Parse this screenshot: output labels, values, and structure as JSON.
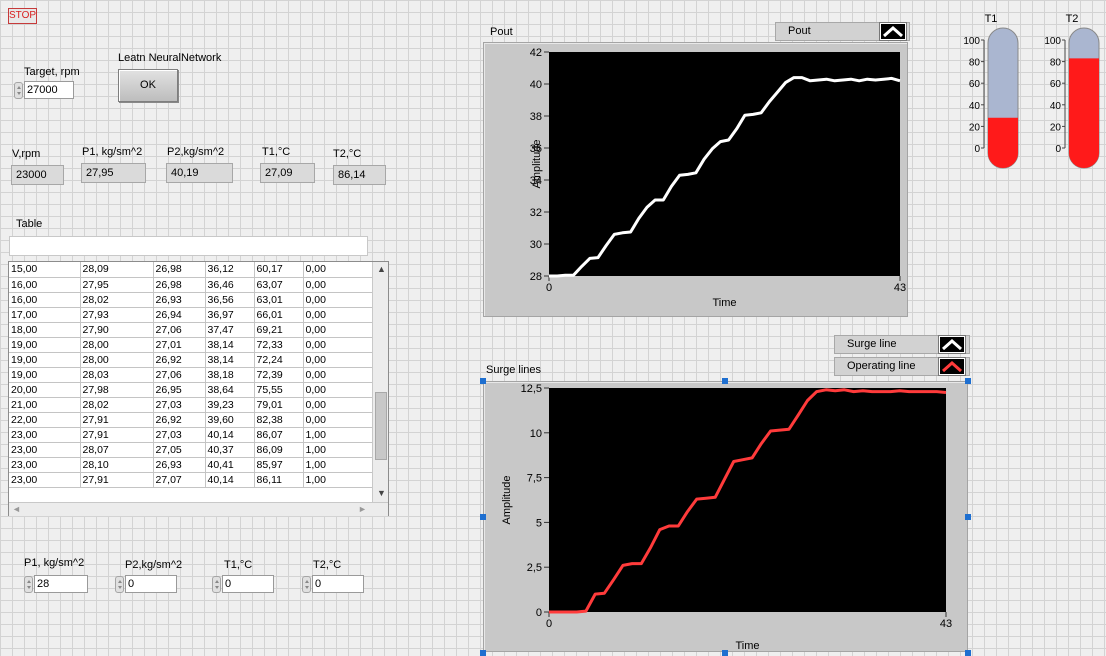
{
  "stop_label": "STOP",
  "learn": {
    "title": "Leatn NeuralNetwork",
    "button": "OK"
  },
  "target": {
    "label": "Target, rpm",
    "value": "27000"
  },
  "indicators": [
    {
      "label": "V,rpm",
      "value": "23000"
    },
    {
      "label": "P1, kg/sm^2",
      "value": "27,95"
    },
    {
      "label": "P2,kg/sm^2",
      "value": "40,19"
    },
    {
      "label": "T1,°C",
      "value": "27,09"
    },
    {
      "label": "T2,°C",
      "value": "86,14"
    }
  ],
  "table": {
    "label": "Table",
    "rows": [
      [
        "15,00",
        "28,09",
        "26,98",
        "36,12",
        "60,17",
        "0,00"
      ],
      [
        "16,00",
        "27,95",
        "26,98",
        "36,46",
        "63,07",
        "0,00"
      ],
      [
        "16,00",
        "28,02",
        "26,93",
        "36,56",
        "63,01",
        "0,00"
      ],
      [
        "17,00",
        "27,93",
        "26,94",
        "36,97",
        "66,01",
        "0,00"
      ],
      [
        "18,00",
        "27,90",
        "27,06",
        "37,47",
        "69,21",
        "0,00"
      ],
      [
        "19,00",
        "28,00",
        "27,01",
        "38,14",
        "72,33",
        "0,00"
      ],
      [
        "19,00",
        "28,00",
        "26,92",
        "38,14",
        "72,24",
        "0,00"
      ],
      [
        "19,00",
        "28,03",
        "27,06",
        "38,18",
        "72,39",
        "0,00"
      ],
      [
        "20,00",
        "27,98",
        "26,95",
        "38,64",
        "75,55",
        "0,00"
      ],
      [
        "21,00",
        "28,02",
        "27,03",
        "39,23",
        "79,01",
        "0,00"
      ],
      [
        "22,00",
        "27,91",
        "26,92",
        "39,60",
        "82,38",
        "0,00"
      ],
      [
        "23,00",
        "27,91",
        "27,03",
        "40,14",
        "86,07",
        "1,00"
      ],
      [
        "23,00",
        "28,07",
        "27,05",
        "40,37",
        "86,09",
        "1,00"
      ],
      [
        "23,00",
        "28,10",
        "26,93",
        "40,41",
        "85,97",
        "1,00"
      ],
      [
        "23,00",
        "27,91",
        "27,07",
        "40,14",
        "86,11",
        "1,00"
      ]
    ]
  },
  "inputs": [
    {
      "label": "P1, kg/sm^2",
      "value": "28"
    },
    {
      "label": "P2,kg/sm^2",
      "value": "0"
    },
    {
      "label": "T1,°C",
      "value": "0"
    },
    {
      "label": "T2,°C",
      "value": "0"
    }
  ],
  "colors": {
    "pout_line": "#ffffff",
    "operating_line": "#ff3b3b",
    "plot_bg": "#000000",
    "tank_red": "#ff1a1a",
    "tank_empty": "#aab6d0"
  },
  "thermometers": [
    {
      "name": "T1",
      "ticks": [
        "100",
        "80",
        "60",
        "40",
        "20",
        "0"
      ],
      "min": 0,
      "max": 100,
      "level": 28
    },
    {
      "name": "T2",
      "ticks": [
        "100",
        "80",
        "60",
        "40",
        "20",
        "0"
      ],
      "min": 0,
      "max": 100,
      "level": 83
    }
  ],
  "chart_data": [
    {
      "type": "line",
      "title": "Pout",
      "legend": [
        "Pout"
      ],
      "xlabel": "Time",
      "ylabel": "Amplitude",
      "xlim": [
        0,
        43
      ],
      "ylim": [
        28,
        42
      ],
      "x_ticks": [
        "0",
        "43"
      ],
      "y_ticks": [
        "28",
        "30",
        "32",
        "34",
        "36",
        "38",
        "40",
        "42"
      ],
      "series": [
        {
          "name": "Pout",
          "color": "#ffffff",
          "x": [
            0,
            1,
            2,
            3,
            4,
            5,
            6,
            7,
            8,
            9,
            10,
            11,
            12,
            13,
            14,
            15,
            16,
            17,
            18,
            19,
            20,
            21,
            22,
            23,
            24,
            25,
            26,
            27,
            28,
            29,
            30,
            31,
            32,
            33,
            34,
            35,
            36,
            37,
            38,
            39,
            40,
            41,
            42,
            43
          ],
          "y": [
            28.0,
            28.0,
            28.05,
            28.05,
            28.6,
            29.1,
            29.15,
            29.9,
            30.6,
            30.7,
            30.75,
            31.6,
            32.3,
            32.75,
            32.75,
            33.6,
            34.3,
            34.35,
            34.45,
            35.3,
            35.95,
            36.4,
            36.5,
            37.2,
            38.05,
            38.1,
            38.2,
            38.9,
            39.5,
            40.1,
            40.4,
            40.4,
            40.2,
            40.25,
            40.3,
            40.2,
            40.25,
            40.3,
            40.2,
            40.3,
            40.25,
            40.3,
            40.35,
            40.2
          ]
        }
      ]
    },
    {
      "type": "line",
      "title": "Surge lines",
      "legend": [
        "Surge line",
        "Operating line"
      ],
      "xlabel": "Time",
      "ylabel": "Amplitude",
      "xlim": [
        0,
        43
      ],
      "ylim": [
        0,
        12.5
      ],
      "x_ticks": [
        "0",
        "43"
      ],
      "y_ticks": [
        "0",
        "2,5",
        "5",
        "7,5",
        "10",
        "12,5"
      ],
      "series": [
        {
          "name": "Operating line",
          "color": "#ff3b3b",
          "x": [
            0,
            1,
            2,
            3,
            4,
            5,
            6,
            7,
            8,
            9,
            10,
            11,
            12,
            13,
            14,
            15,
            16,
            17,
            18,
            19,
            20,
            21,
            22,
            23,
            24,
            25,
            26,
            27,
            28,
            29,
            30,
            31,
            32,
            33,
            34,
            35,
            36,
            37,
            38,
            39,
            40,
            41,
            42,
            43
          ],
          "y": [
            0.0,
            0.0,
            0.0,
            0.0,
            0.05,
            1.0,
            1.05,
            1.8,
            2.6,
            2.7,
            2.7,
            3.6,
            4.6,
            4.8,
            4.8,
            5.6,
            6.3,
            6.35,
            6.4,
            7.4,
            8.4,
            8.5,
            8.6,
            9.4,
            10.1,
            10.15,
            10.2,
            11.0,
            11.8,
            12.3,
            12.4,
            12.35,
            12.4,
            12.3,
            12.35,
            12.3,
            12.3,
            12.3,
            12.35,
            12.3,
            12.3,
            12.3,
            12.3,
            12.25
          ]
        }
      ]
    }
  ]
}
